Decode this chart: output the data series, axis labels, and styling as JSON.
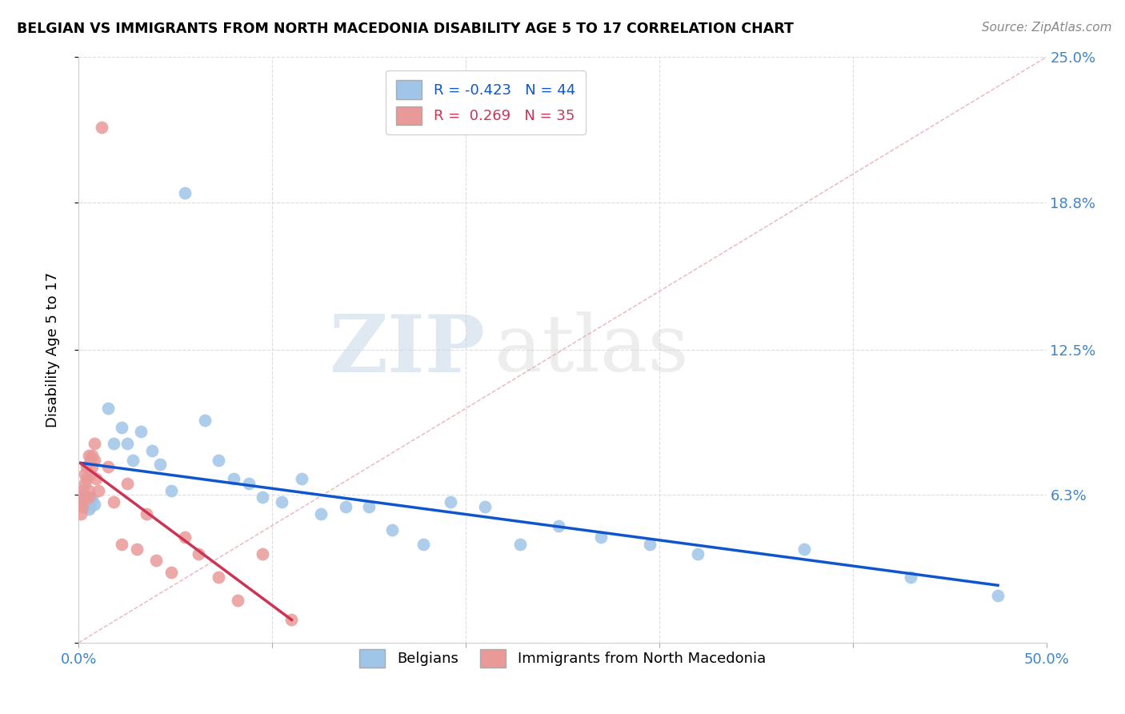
{
  "title": "BELGIAN VS IMMIGRANTS FROM NORTH MACEDONIA DISABILITY AGE 5 TO 17 CORRELATION CHART",
  "source": "Source: ZipAtlas.com",
  "ylabel": "Disability Age 5 to 17",
  "xlim": [
    0.0,
    0.5
  ],
  "ylim": [
    0.0,
    0.25
  ],
  "belgian_color": "#9fc5e8",
  "macedonian_color": "#ea9999",
  "trend_blue": "#1155cc",
  "trend_pink": "#cc3355",
  "R_belgian": -0.423,
  "N_belgian": 44,
  "R_macedonian": 0.269,
  "N_macedonian": 35,
  "watermark_zip": "ZIP",
  "watermark_atlas": "atlas",
  "belgians_x": [
    0.001,
    0.002,
    0.003,
    0.003,
    0.004,
    0.004,
    0.005,
    0.005,
    0.006,
    0.006,
    0.007,
    0.008,
    0.015,
    0.018,
    0.022,
    0.025,
    0.028,
    0.032,
    0.038,
    0.042,
    0.048,
    0.055,
    0.065,
    0.072,
    0.08,
    0.088,
    0.095,
    0.105,
    0.115,
    0.125,
    0.138,
    0.15,
    0.162,
    0.178,
    0.192,
    0.21,
    0.228,
    0.248,
    0.27,
    0.295,
    0.32,
    0.375,
    0.43,
    0.475
  ],
  "belgians_y": [
    0.063,
    0.062,
    0.061,
    0.059,
    0.058,
    0.06,
    0.057,
    0.06,
    0.058,
    0.062,
    0.061,
    0.059,
    0.1,
    0.085,
    0.092,
    0.085,
    0.078,
    0.09,
    0.082,
    0.076,
    0.065,
    0.192,
    0.095,
    0.078,
    0.07,
    0.068,
    0.062,
    0.06,
    0.07,
    0.055,
    0.058,
    0.058,
    0.048,
    0.042,
    0.06,
    0.058,
    0.042,
    0.05,
    0.045,
    0.042,
    0.038,
    0.04,
    0.028,
    0.02
  ],
  "macedonians_x": [
    0.001,
    0.001,
    0.002,
    0.002,
    0.003,
    0.003,
    0.003,
    0.004,
    0.004,
    0.005,
    0.005,
    0.005,
    0.006,
    0.006,
    0.007,
    0.007,
    0.008,
    0.008,
    0.009,
    0.01,
    0.012,
    0.015,
    0.018,
    0.022,
    0.025,
    0.03,
    0.035,
    0.04,
    0.048,
    0.055,
    0.062,
    0.072,
    0.082,
    0.095,
    0.11
  ],
  "macedonians_y": [
    0.06,
    0.055,
    0.065,
    0.058,
    0.072,
    0.068,
    0.062,
    0.075,
    0.07,
    0.08,
    0.062,
    0.065,
    0.078,
    0.072,
    0.08,
    0.075,
    0.085,
    0.078,
    0.07,
    0.065,
    0.22,
    0.075,
    0.06,
    0.042,
    0.068,
    0.04,
    0.055,
    0.035,
    0.03,
    0.045,
    0.038,
    0.028,
    0.018,
    0.038,
    0.01
  ]
}
